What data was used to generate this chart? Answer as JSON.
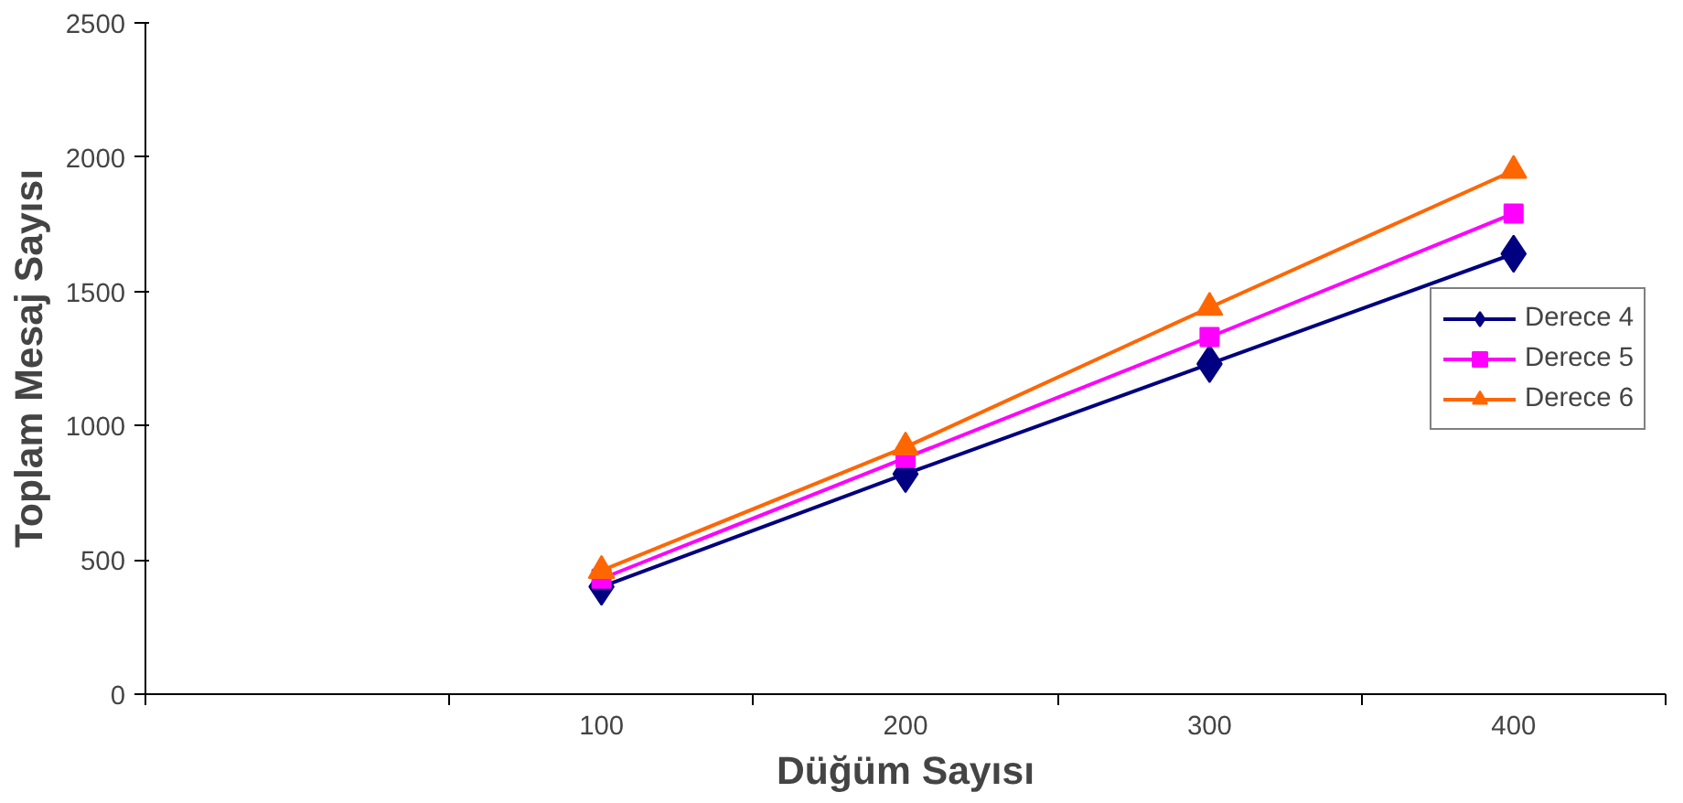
{
  "chart_data": {
    "type": "line",
    "xlabel": "Düğüm Sayısı",
    "ylabel": "Toplam Mesaj Sayısı",
    "categories": [
      null,
      "100",
      "200",
      "300",
      "400"
    ],
    "ylim": [
      0,
      2500
    ],
    "yticks": [
      0,
      500,
      1000,
      1500,
      2000,
      2500
    ],
    "grid": false,
    "legend": "right",
    "series": [
      {
        "name": "Derece 4",
        "color": "#000080",
        "marker": "diamond",
        "values": [
          null,
          400,
          820,
          1230,
          1640
        ]
      },
      {
        "name": "Derece 5",
        "color": "#ff00ff",
        "marker": "square",
        "values": [
          null,
          430,
          880,
          1330,
          1790
        ]
      },
      {
        "name": "Derece 6",
        "color": "#ff6600",
        "marker": "triangle",
        "values": [
          null,
          460,
          920,
          1440,
          1950
        ]
      }
    ]
  }
}
